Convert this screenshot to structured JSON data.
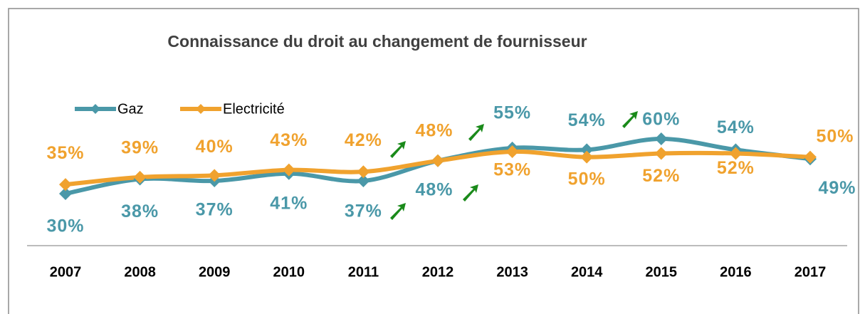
{
  "chart_data": {
    "type": "line",
    "title": "Connaissance du droit au changement de fournisseur",
    "categories": [
      "2007",
      "2008",
      "2009",
      "2010",
      "2011",
      "2012",
      "2013",
      "2014",
      "2015",
      "2016",
      "2017"
    ],
    "series": [
      {
        "name": "Gaz",
        "color": "#4a98a8",
        "values": [
          30,
          38,
          37,
          41,
          37,
          48,
          55,
          54,
          60,
          54,
          49
        ],
        "value_labels": [
          "30%",
          "38%",
          "37%",
          "41%",
          "37%",
          "48%",
          "55%",
          "54%",
          "60%",
          "54%",
          "49%"
        ]
      },
      {
        "name": "Electricité",
        "color": "#f0a22e",
        "values": [
          35,
          39,
          40,
          43,
          42,
          48,
          53,
          50,
          52,
          52,
          50
        ],
        "value_labels": [
          "35%",
          "39%",
          "40%",
          "43%",
          "42%",
          "48%",
          "53%",
          "50%",
          "52%",
          "52%",
          "50%"
        ]
      }
    ]
  }
}
